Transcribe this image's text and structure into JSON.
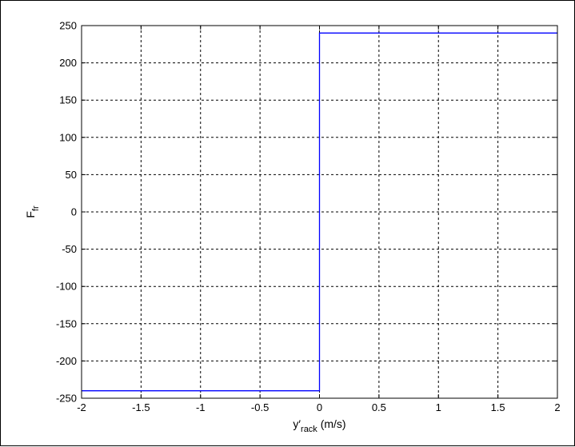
{
  "chart_data": {
    "type": "line",
    "title": "",
    "xlabel": {
      "base": "y′",
      "sub": "rack",
      "rest": " (m/s)"
    },
    "ylabel": {
      "base": "F",
      "sub": "fr"
    },
    "xlim": [
      -2,
      2
    ],
    "ylim": [
      -250,
      250
    ],
    "xticks": [
      -2,
      -1.5,
      -1,
      -0.5,
      0,
      0.5,
      1,
      1.5,
      2
    ],
    "yticks": [
      -250,
      -200,
      -150,
      -100,
      -50,
      0,
      50,
      100,
      150,
      200,
      250
    ],
    "xtick_labels": [
      "-2",
      "-1.5",
      "-1",
      "-0.5",
      "0",
      "0.5",
      "1",
      "1.5",
      "2"
    ],
    "ytick_labels": [
      "-250",
      "-200",
      "-150",
      "-100",
      "-50",
      "0",
      "50",
      "100",
      "150",
      "200",
      "250"
    ],
    "grid": true,
    "grid_style": "dotted",
    "series": [
      {
        "color": "#0000ff",
        "x": [
          -2,
          0,
          0,
          0,
          2
        ],
        "y": [
          -240,
          -240,
          0,
          240,
          240
        ]
      }
    ]
  }
}
